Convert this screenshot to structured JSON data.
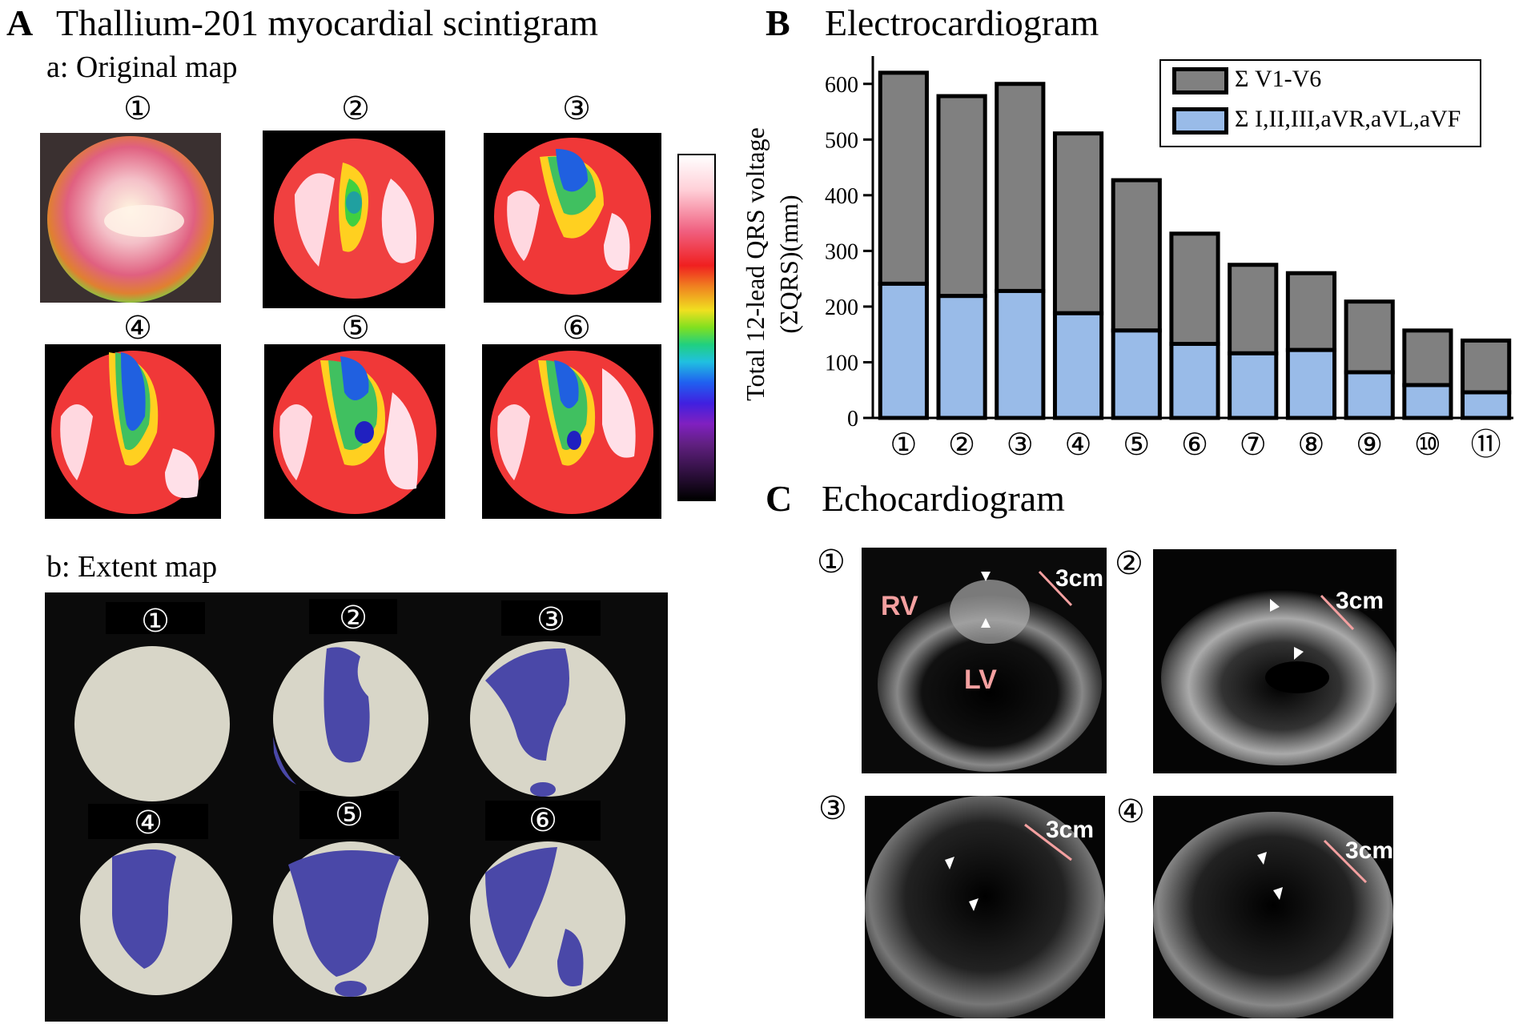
{
  "panel_a": {
    "letter": "A",
    "title": "Thallium-201 myocardial scintigram",
    "sub_a": "a: Original map",
    "sub_b": "b: Extent map",
    "map_numbers": [
      "①",
      "②",
      "③",
      "④",
      "⑤",
      "⑥"
    ]
  },
  "panel_b": {
    "letter": "B",
    "title": "Electrocardiogram"
  },
  "panel_c": {
    "letter": "C",
    "title": "Echocardiogram",
    "numbers": [
      "①",
      "②",
      "③",
      "④"
    ],
    "scale": "3cm",
    "rv": "RV",
    "lv": "LV"
  },
  "chart_data": {
    "type": "bar",
    "stacked": true,
    "categories": [
      "①",
      "②",
      "③",
      "④",
      "⑤",
      "⑥",
      "⑦",
      "⑧",
      "⑨",
      "⑩",
      "⑪"
    ],
    "ylabel": "Total 12-lead QRS voltage (ΣQRS)(mm)",
    "ylabel_line1": "Total 12-lead QRS voltage",
    "ylabel_line2": "(ΣQRS)(mm)",
    "ylim": [
      0,
      650
    ],
    "yticks": [
      "0",
      "100",
      "200",
      "300",
      "400",
      "500",
      "600"
    ],
    "ytick_values": [
      0,
      100,
      200,
      300,
      400,
      500,
      600
    ],
    "legend_position": "top-right",
    "series": [
      {
        "name": "Σ V1-V6",
        "color": "#808080",
        "values": [
          379,
          359,
          372,
          323,
          270,
          198,
          159,
          138,
          127,
          98,
          93
        ]
      },
      {
        "name": "Σ I,II,III,aVR,aVL,aVF",
        "color": "#99bbe8",
        "values": [
          241,
          219,
          228,
          188,
          157,
          133,
          116,
          122,
          82,
          59,
          46
        ]
      }
    ],
    "totals": [
      620,
      578,
      600,
      511,
      427,
      331,
      275,
      260,
      209,
      157,
      139
    ]
  },
  "colors": {
    "bar_gray": "#808080",
    "bar_blue": "#99bbe8",
    "extent_blue": "#4a48a8",
    "extent_gray": "#d8d6c8",
    "echo_pink": "#f4a0a0"
  }
}
